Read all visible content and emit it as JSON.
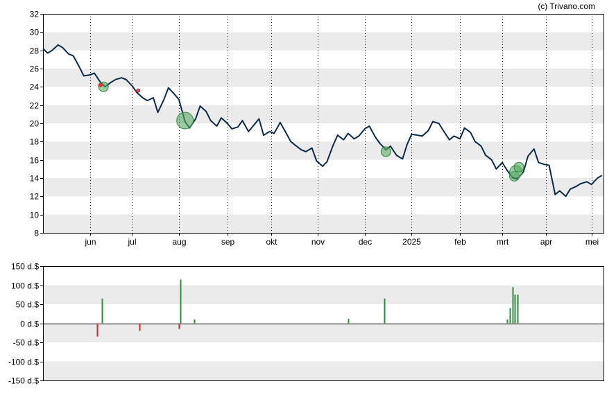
{
  "copyright": "(c) Trivano.com",
  "colors": {
    "line": "#0b2a47",
    "band": "#ebebeb",
    "axis": "#000000",
    "grid_dotted": "#000000",
    "buy": "#2e8b3e",
    "buy_fill": "#5aa867",
    "sell": "#e0202a"
  },
  "chart_data": [
    {
      "type": "line",
      "title": "",
      "ylim": [
        8,
        32
      ],
      "y_ticks": [
        "8",
        "10",
        "12",
        "14",
        "16",
        "18",
        "20",
        "22",
        "24",
        "26",
        "28",
        "30",
        "32"
      ],
      "x_ticks": [
        "jun",
        "jul",
        "aug",
        "sep",
        "okt",
        "nov",
        "dec",
        "2025",
        "feb",
        "mrt",
        "apr",
        "mei"
      ],
      "x_range": [
        "2024-05-03",
        "2025-05-09"
      ],
      "x_tick_dates": [
        "2024-06-03",
        "2024-07-01",
        "2024-08-01",
        "2024-09-02",
        "2024-10-01",
        "2024-11-01",
        "2024-12-02",
        "2025-01-02",
        "2025-02-03",
        "2025-03-03",
        "2025-04-01",
        "2025-05-01"
      ],
      "series": [
        {
          "x": [
            "2024-05-03",
            "2024-05-06",
            "2024-05-09",
            "2024-05-13",
            "2024-05-16",
            "2024-05-20",
            "2024-05-23",
            "2024-05-27",
            "2024-05-30",
            "2024-06-03",
            "2024-06-06",
            "2024-06-10",
            "2024-06-13",
            "2024-06-17",
            "2024-06-20",
            "2024-06-24",
            "2024-06-27",
            "2024-07-01",
            "2024-07-04",
            "2024-07-08",
            "2024-07-11",
            "2024-07-15",
            "2024-07-18",
            "2024-07-22",
            "2024-07-25",
            "2024-07-29",
            "2024-08-01",
            "2024-08-05",
            "2024-08-08",
            "2024-08-12",
            "2024-08-15",
            "2024-08-19",
            "2024-08-22",
            "2024-08-26",
            "2024-08-29",
            "2024-09-02",
            "2024-09-05",
            "2024-09-09",
            "2024-09-12",
            "2024-09-16",
            "2024-09-19",
            "2024-09-23",
            "2024-09-26",
            "2024-09-30",
            "2024-10-03",
            "2024-10-07",
            "2024-10-10",
            "2024-10-14",
            "2024-10-17",
            "2024-10-21",
            "2024-10-24",
            "2024-10-28",
            "2024-10-31",
            "2024-11-04",
            "2024-11-07",
            "2024-11-11",
            "2024-11-14",
            "2024-11-18",
            "2024-11-21",
            "2024-11-25",
            "2024-11-28",
            "2024-12-02",
            "2024-12-05",
            "2024-12-09",
            "2024-12-12",
            "2024-12-16",
            "2024-12-19",
            "2024-12-23",
            "2024-12-27",
            "2024-12-30",
            "2025-01-02",
            "2025-01-06",
            "2025-01-09",
            "2025-01-13",
            "2025-01-16",
            "2025-01-20",
            "2025-01-23",
            "2025-01-27",
            "2025-01-30",
            "2025-02-03",
            "2025-02-06",
            "2025-02-10",
            "2025-02-13",
            "2025-02-17",
            "2025-02-20",
            "2025-02-24",
            "2025-02-27",
            "2025-03-03",
            "2025-03-06",
            "2025-03-10",
            "2025-03-13",
            "2025-03-17",
            "2025-03-20",
            "2025-03-24",
            "2025-03-27",
            "2025-03-31",
            "2025-04-03",
            "2025-04-07",
            "2025-04-10",
            "2025-04-14",
            "2025-04-17",
            "2025-04-21",
            "2025-04-24",
            "2025-04-28",
            "2025-05-01",
            "2025-05-05",
            "2025-05-08"
          ],
          "y": [
            28.2,
            27.7,
            28.0,
            28.6,
            28.3,
            27.6,
            27.4,
            26.2,
            25.2,
            25.3,
            25.5,
            24.5,
            24.0,
            24.5,
            24.8,
            25.0,
            24.8,
            24.1,
            23.4,
            22.8,
            22.5,
            22.8,
            21.2,
            22.6,
            23.9,
            23.2,
            22.6,
            20.2,
            19.5,
            20.5,
            21.9,
            21.3,
            20.3,
            19.7,
            20.6,
            20.0,
            19.4,
            19.6,
            20.3,
            19.1,
            19.7,
            20.5,
            18.7,
            19.1,
            18.9,
            20.1,
            19.2,
            18.0,
            17.6,
            17.1,
            16.9,
            17.3,
            15.9,
            15.3,
            15.8,
            17.6,
            18.7,
            18.2,
            18.9,
            18.3,
            18.6,
            19.4,
            19.7,
            18.5,
            17.8,
            17.1,
            17.5,
            16.5,
            16.1,
            17.7,
            18.8,
            18.7,
            18.6,
            19.2,
            20.2,
            20.0,
            19.2,
            18.2,
            18.6,
            18.3,
            19.5,
            19.0,
            18.0,
            17.5,
            16.5,
            16.0,
            15.0,
            15.7,
            14.9,
            14.0,
            13.9,
            14.7,
            16.4,
            17.2,
            15.7,
            15.5,
            15.4,
            12.2,
            12.6,
            12.0,
            12.8,
            13.1,
            13.4,
            13.6,
            13.3,
            14.0,
            14.3
          ]
        }
      ],
      "trade_markers": [
        {
          "x": "2024-06-12",
          "y": 24.0,
          "side": "buy",
          "size": "small"
        },
        {
          "x": "2024-06-10",
          "y": 24.2,
          "side": "sell",
          "size": "tiny"
        },
        {
          "x": "2024-07-05",
          "y": 23.6,
          "side": "sell",
          "size": "tiny"
        },
        {
          "x": "2024-08-05",
          "y": 20.3,
          "side": "buy",
          "size": "large"
        },
        {
          "x": "2024-12-16",
          "y": 16.9,
          "side": "buy",
          "size": "small"
        },
        {
          "x": "2025-03-11",
          "y": 14.2,
          "side": "buy",
          "size": "small"
        },
        {
          "x": "2025-03-12",
          "y": 14.7,
          "side": "buy",
          "size": "medium"
        },
        {
          "x": "2025-03-14",
          "y": 15.2,
          "side": "buy",
          "size": "small"
        }
      ]
    },
    {
      "type": "bar",
      "ylim": [
        -150,
        150
      ],
      "y_ticks": [
        "150 d.$",
        "100 d.$",
        "50 d.$",
        "0 d.$",
        "-50 d.$",
        "-100 d.$",
        "-150 d.$"
      ],
      "x_range": [
        "2024-05-03",
        "2025-05-09"
      ],
      "bars": [
        {
          "x": "2024-06-08",
          "value": -35,
          "side": "sell"
        },
        {
          "x": "2024-06-11",
          "value": 65,
          "side": "buy"
        },
        {
          "x": "2024-07-06",
          "value": -20,
          "side": "sell"
        },
        {
          "x": "2024-08-01",
          "value": -15,
          "side": "sell"
        },
        {
          "x": "2024-08-02",
          "value": 115,
          "side": "buy"
        },
        {
          "x": "2024-08-11",
          "value": 10,
          "side": "buy"
        },
        {
          "x": "2024-11-21",
          "value": 12,
          "side": "buy"
        },
        {
          "x": "2024-12-15",
          "value": 65,
          "side": "buy"
        },
        {
          "x": "2025-03-06",
          "value": 10,
          "side": "buy"
        },
        {
          "x": "2025-03-08",
          "value": 40,
          "side": "buy"
        },
        {
          "x": "2025-03-10",
          "value": 95,
          "side": "buy"
        },
        {
          "x": "2025-03-11",
          "value": 75,
          "side": "buy"
        },
        {
          "x": "2025-03-13",
          "value": 75,
          "side": "buy"
        }
      ]
    }
  ]
}
